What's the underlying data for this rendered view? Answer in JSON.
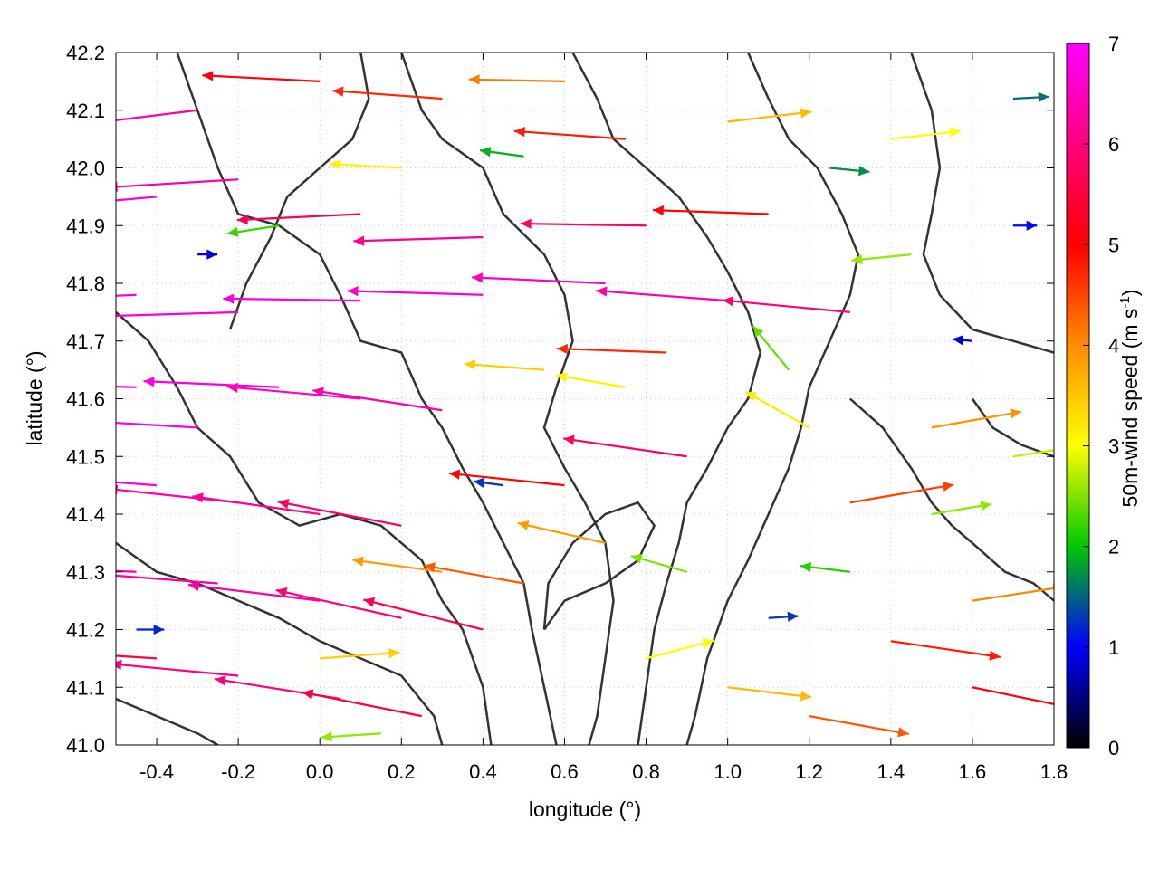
{
  "chart_data": {
    "type": "quiver",
    "xlabel": "longitude (°)",
    "ylabel": "latitude (°)",
    "colorbar_label": "50m-wind speed (m s",
    "colorbar_label_exp": "-1",
    "colorbar_label_close": ")",
    "xlim": [
      -0.5,
      1.8
    ],
    "ylim": [
      41.0,
      42.2
    ],
    "xticks": [
      -0.4,
      -0.2,
      0.0,
      0.2,
      0.4,
      0.6,
      0.8,
      1.0,
      1.2,
      1.4,
      1.6,
      1.8
    ],
    "xtick_labels": [
      "-0.4",
      "-0.2",
      "0.0",
      "0.2",
      "0.4",
      "0.6",
      "0.8",
      "1.0",
      "1.2",
      "1.4",
      "1.6",
      "1.8"
    ],
    "yticks": [
      41.0,
      41.1,
      41.2,
      41.3,
      41.4,
      41.5,
      41.6,
      41.7,
      41.8,
      41.9,
      42.0,
      42.1,
      42.2
    ],
    "ytick_labels": [
      "41.0",
      "41.1",
      "41.2",
      "41.3",
      "41.4",
      "41.5",
      "41.6",
      "41.7",
      "41.8",
      "41.9",
      "42.0",
      "42.1",
      "42.2"
    ],
    "colorbar_range": [
      0,
      7
    ],
    "colorbar_ticks": [
      "0",
      "1",
      "2",
      "3",
      "4",
      "5",
      "6",
      "7"
    ],
    "colormap": [
      "#000000",
      "#0000ff",
      "#00c800",
      "#ffff00",
      "#ff8c00",
      "#ff0000",
      "#ff00ff"
    ],
    "contour_color": "#333333",
    "grid": true,
    "vectors": [
      {
        "lon": -0.45,
        "lat": 41.62,
        "u": -7.0,
        "v": 0.2,
        "speed": 7.0
      },
      {
        "lon": -0.3,
        "lat": 41.55,
        "u": -6.9,
        "v": 0.4,
        "speed": 6.9
      },
      {
        "lon": -0.1,
        "lat": 41.62,
        "u": -6.8,
        "v": 0.3,
        "speed": 6.8
      },
      {
        "lon": 0.1,
        "lat": 41.6,
        "u": -6.7,
        "v": 0.6,
        "speed": 6.7
      },
      {
        "lon": 0.3,
        "lat": 41.58,
        "u": -6.5,
        "v": 1.0,
        "speed": 6.6
      },
      {
        "lon": -0.4,
        "lat": 41.45,
        "u": -6.8,
        "v": 0.5,
        "speed": 6.8
      },
      {
        "lon": -0.2,
        "lat": 41.42,
        "u": -6.6,
        "v": 0.7,
        "speed": 6.6
      },
      {
        "lon": 0.0,
        "lat": 41.4,
        "u": -6.4,
        "v": 0.9,
        "speed": 6.5
      },
      {
        "lon": 0.2,
        "lat": 41.38,
        "u": -6.2,
        "v": 1.2,
        "speed": 6.3
      },
      {
        "lon": -0.45,
        "lat": 41.3,
        "u": -6.7,
        "v": 0.3,
        "speed": 6.7
      },
      {
        "lon": -0.25,
        "lat": 41.28,
        "u": -6.5,
        "v": 0.5,
        "speed": 6.5
      },
      {
        "lon": 0.0,
        "lat": 41.25,
        "u": -6.6,
        "v": 0.8,
        "speed": 6.6
      },
      {
        "lon": 0.2,
        "lat": 41.22,
        "u": -6.3,
        "v": 1.4,
        "speed": 6.4
      },
      {
        "lon": 0.4,
        "lat": 41.2,
        "u": -6.0,
        "v": 1.5,
        "speed": 6.2
      },
      {
        "lon": -0.4,
        "lat": 41.15,
        "u": -6.2,
        "v": 0.4,
        "speed": 6.2
      },
      {
        "lon": -0.2,
        "lat": 41.12,
        "u": -6.4,
        "v": 0.6,
        "speed": 6.4
      },
      {
        "lon": 0.05,
        "lat": 41.08,
        "u": -6.3,
        "v": 1.0,
        "speed": 6.4
      },
      {
        "lon": 0.25,
        "lat": 41.05,
        "u": -6.0,
        "v": 1.2,
        "speed": 6.1
      },
      {
        "lon": -0.45,
        "lat": 41.78,
        "u": -6.9,
        "v": -0.3,
        "speed": 6.9
      },
      {
        "lon": -0.2,
        "lat": 41.75,
        "u": -6.8,
        "v": -0.2,
        "speed": 6.8
      },
      {
        "lon": 0.1,
        "lat": 41.77,
        "u": -6.9,
        "v": 0.1,
        "speed": 6.9
      },
      {
        "lon": 0.4,
        "lat": 41.78,
        "u": -6.8,
        "v": 0.2,
        "speed": 6.8
      },
      {
        "lon": 0.7,
        "lat": 41.8,
        "u": -6.7,
        "v": 0.3,
        "speed": 6.7
      },
      {
        "lon": 1.0,
        "lat": 41.77,
        "u": -6.6,
        "v": 0.5,
        "speed": 6.6
      },
      {
        "lon": 1.3,
        "lat": 41.75,
        "u": -6.4,
        "v": 0.6,
        "speed": 6.4
      },
      {
        "lon": -0.4,
        "lat": 41.95,
        "u": -6.8,
        "v": -0.6,
        "speed": 6.8
      },
      {
        "lon": -0.2,
        "lat": 41.98,
        "u": -6.6,
        "v": -0.4,
        "speed": 6.6
      },
      {
        "lon": 0.1,
        "lat": 41.92,
        "u": -6.2,
        "v": -0.3,
        "speed": 6.2
      },
      {
        "lon": 0.4,
        "lat": 41.88,
        "u": -6.5,
        "v": -0.2,
        "speed": 6.5
      },
      {
        "lon": 0.8,
        "lat": 41.9,
        "u": -6.3,
        "v": 0.1,
        "speed": 6.3
      },
      {
        "lon": 1.1,
        "lat": 41.92,
        "u": -5.8,
        "v": 0.2,
        "speed": 5.8
      },
      {
        "lon": -0.3,
        "lat": 42.1,
        "u": -6.5,
        "v": -0.8,
        "speed": 6.6
      },
      {
        "lon": 0.0,
        "lat": 42.15,
        "u": -5.9,
        "v": 0.3,
        "speed": 5.9
      },
      {
        "lon": 0.3,
        "lat": 42.12,
        "u": -5.5,
        "v": 0.4,
        "speed": 5.5
      },
      {
        "lon": 0.6,
        "lat": 42.15,
        "u": -4.8,
        "v": 0.1,
        "speed": 4.8
      },
      {
        "lon": 1.0,
        "lat": 42.08,
        "u": 4.2,
        "v": 0.5,
        "speed": 4.2
      },
      {
        "lon": 1.4,
        "lat": 42.05,
        "u": 3.5,
        "v": 0.4,
        "speed": 3.5
      },
      {
        "lon": 1.7,
        "lat": 42.12,
        "u": 1.8,
        "v": 0.1,
        "speed": 1.8
      },
      {
        "lon": 1.7,
        "lat": 41.9,
        "u": 1.2,
        "v": 0.0,
        "speed": 1.2
      },
      {
        "lon": 1.6,
        "lat": 41.7,
        "u": -1.0,
        "v": 0.1,
        "speed": 1.0
      },
      {
        "lon": 1.5,
        "lat": 41.55,
        "u": 4.5,
        "v": 0.8,
        "speed": 4.6
      },
      {
        "lon": 1.5,
        "lat": 41.4,
        "u": 3.0,
        "v": 0.5,
        "speed": 3.0
      },
      {
        "lon": 1.3,
        "lat": 41.42,
        "u": 5.2,
        "v": 0.9,
        "speed": 5.3
      },
      {
        "lon": 1.6,
        "lat": 41.25,
        "u": 4.6,
        "v": 0.7,
        "speed": 4.7
      },
      {
        "lon": 1.4,
        "lat": 41.18,
        "u": 5.5,
        "v": -0.8,
        "speed": 5.6
      },
      {
        "lon": 1.6,
        "lat": 41.1,
        "u": 5.8,
        "v": -1.2,
        "speed": 5.9
      },
      {
        "lon": 1.2,
        "lat": 41.05,
        "u": 5.0,
        "v": -0.9,
        "speed": 5.1
      },
      {
        "lon": 1.0,
        "lat": 41.1,
        "u": 4.2,
        "v": -0.5,
        "speed": 4.2
      },
      {
        "lon": 0.8,
        "lat": 41.15,
        "u": 3.4,
        "v": 0.9,
        "speed": 3.5
      },
      {
        "lon": 0.9,
        "lat": 41.3,
        "u": -2.8,
        "v": 0.8,
        "speed": 2.9
      },
      {
        "lon": 0.7,
        "lat": 41.35,
        "u": -4.4,
        "v": 1.0,
        "speed": 4.5
      },
      {
        "lon": 0.6,
        "lat": 41.45,
        "u": -5.8,
        "v": 0.6,
        "speed": 5.8
      },
      {
        "lon": 0.9,
        "lat": 41.5,
        "u": -6.2,
        "v": 0.9,
        "speed": 6.3
      },
      {
        "lon": 1.2,
        "lat": 41.55,
        "u": -3.2,
        "v": 1.8,
        "speed": 3.7
      },
      {
        "lon": 0.75,
        "lat": 41.62,
        "u": -3.5,
        "v": 0.6,
        "speed": 3.6
      },
      {
        "lon": 0.55,
        "lat": 41.65,
        "u": -4.0,
        "v": 0.3,
        "speed": 4.0
      },
      {
        "lon": 0.85,
        "lat": 41.68,
        "u": -5.5,
        "v": 0.2,
        "speed": 5.5
      },
      {
        "lon": 1.15,
        "lat": 41.65,
        "u": -1.8,
        "v": 2.2,
        "speed": 2.8
      },
      {
        "lon": 0.45,
        "lat": 41.45,
        "u": -1.5,
        "v": 0.2,
        "speed": 1.5
      },
      {
        "lon": 1.7,
        "lat": 41.5,
        "u": 3.2,
        "v": 0.5,
        "speed": 3.2
      },
      {
        "lon": 1.3,
        "lat": 41.3,
        "u": -2.5,
        "v": 0.3,
        "speed": 2.5
      },
      {
        "lon": 1.1,
        "lat": 41.22,
        "u": 1.5,
        "v": 0.1,
        "speed": 1.5
      },
      {
        "lon": 0.3,
        "lat": 41.3,
        "u": -4.5,
        "v": 0.6,
        "speed": 4.5
      },
      {
        "lon": 0.5,
        "lat": 41.28,
        "u": -5.0,
        "v": 0.9,
        "speed": 5.1
      },
      {
        "lon": 1.45,
        "lat": 41.85,
        "u": -3.0,
        "v": -0.3,
        "speed": 3.0
      },
      {
        "lon": 1.25,
        "lat": 42.0,
        "u": 2.0,
        "v": -0.2,
        "speed": 2.0
      },
      {
        "lon": -0.3,
        "lat": 41.85,
        "u": 1.0,
        "v": 0.0,
        "speed": 1.0
      },
      {
        "lon": -0.1,
        "lat": 41.9,
        "u": -2.6,
        "v": -0.4,
        "speed": 2.6
      },
      {
        "lon": 0.2,
        "lat": 42.0,
        "u": -3.6,
        "v": 0.2,
        "speed": 3.6
      },
      {
        "lon": 0.5,
        "lat": 42.02,
        "u": -2.2,
        "v": 0.3,
        "speed": 2.2
      },
      {
        "lon": 0.75,
        "lat": 42.05,
        "u": -5.6,
        "v": 0.4,
        "speed": 5.6
      },
      {
        "lon": -0.45,
        "lat": 41.2,
        "u": 1.4,
        "v": 0.0,
        "speed": 1.4
      },
      {
        "lon": 0.0,
        "lat": 41.15,
        "u": 4.0,
        "v": 0.3,
        "speed": 4.0
      },
      {
        "lon": 0.15,
        "lat": 41.02,
        "u": -3.0,
        "v": -0.2,
        "speed": 3.0
      }
    ],
    "contours": [
      [
        [
          -0.5,
          41.75
        ],
        [
          -0.42,
          41.7
        ],
        [
          -0.35,
          41.62
        ],
        [
          -0.3,
          41.55
        ],
        [
          -0.22,
          41.5
        ],
        [
          -0.15,
          41.42
        ],
        [
          -0.05,
          41.38
        ],
        [
          0.05,
          41.4
        ],
        [
          0.15,
          41.38
        ],
        [
          0.25,
          41.32
        ],
        [
          0.3,
          41.25
        ],
        [
          0.35,
          41.2
        ],
        [
          0.4,
          41.1
        ],
        [
          0.42,
          41.0
        ]
      ],
      [
        [
          -0.35,
          42.2
        ],
        [
          -0.3,
          42.1
        ],
        [
          -0.25,
          42.0
        ],
        [
          -0.2,
          41.92
        ],
        [
          -0.1,
          41.9
        ],
        [
          0.0,
          41.85
        ],
        [
          0.05,
          41.78
        ],
        [
          0.1,
          41.7
        ],
        [
          0.2,
          41.68
        ],
        [
          0.25,
          41.6
        ],
        [
          0.3,
          41.55
        ],
        [
          0.35,
          41.48
        ],
        [
          0.4,
          41.42
        ],
        [
          0.45,
          41.35
        ],
        [
          0.5,
          41.28
        ],
        [
          0.52,
          41.2
        ],
        [
          0.55,
          41.1
        ],
        [
          0.58,
          41.0
        ]
      ],
      [
        [
          0.2,
          42.2
        ],
        [
          0.25,
          42.1
        ],
        [
          0.3,
          42.05
        ],
        [
          0.4,
          42.0
        ],
        [
          0.45,
          41.92
        ],
        [
          0.55,
          41.85
        ],
        [
          0.6,
          41.78
        ],
        [
          0.62,
          41.7
        ],
        [
          0.58,
          41.62
        ],
        [
          0.55,
          41.55
        ],
        [
          0.6,
          41.48
        ],
        [
          0.65,
          41.42
        ],
        [
          0.7,
          41.35
        ],
        [
          0.72,
          41.25
        ],
        [
          0.7,
          41.15
        ],
        [
          0.68,
          41.05
        ],
        [
          0.66,
          41.0
        ]
      ],
      [
        [
          0.62,
          42.2
        ],
        [
          0.68,
          42.12
        ],
        [
          0.72,
          42.05
        ],
        [
          0.8,
          42.0
        ],
        [
          0.88,
          41.95
        ],
        [
          0.95,
          41.88
        ],
        [
          1.0,
          41.82
        ],
        [
          1.05,
          41.75
        ],
        [
          1.08,
          41.68
        ],
        [
          1.05,
          41.6
        ],
        [
          1.0,
          41.55
        ],
        [
          0.95,
          41.48
        ],
        [
          0.9,
          41.42
        ],
        [
          0.88,
          41.35
        ],
        [
          0.85,
          41.28
        ],
        [
          0.82,
          41.2
        ],
        [
          0.8,
          41.1
        ],
        [
          0.78,
          41.0
        ]
      ],
      [
        [
          1.05,
          42.2
        ],
        [
          1.1,
          42.12
        ],
        [
          1.15,
          42.05
        ],
        [
          1.22,
          42.0
        ],
        [
          1.28,
          41.92
        ],
        [
          1.32,
          41.85
        ],
        [
          1.3,
          41.78
        ],
        [
          1.25,
          41.7
        ],
        [
          1.2,
          41.62
        ],
        [
          1.18,
          41.55
        ],
        [
          1.15,
          41.48
        ],
        [
          1.1,
          41.4
        ],
        [
          1.05,
          41.32
        ],
        [
          1.0,
          41.25
        ],
        [
          0.95,
          41.15
        ],
        [
          0.92,
          41.05
        ],
        [
          0.9,
          41.0
        ]
      ],
      [
        [
          1.3,
          41.6
        ],
        [
          1.38,
          41.55
        ],
        [
          1.45,
          41.48
        ],
        [
          1.5,
          41.42
        ],
        [
          1.55,
          41.38
        ],
        [
          1.6,
          41.35
        ],
        [
          1.68,
          41.3
        ],
        [
          1.75,
          41.28
        ],
        [
          1.8,
          41.25
        ]
      ],
      [
        [
          -0.5,
          41.35
        ],
        [
          -0.4,
          41.3
        ],
        [
          -0.3,
          41.28
        ],
        [
          -0.2,
          41.25
        ],
        [
          -0.1,
          41.22
        ],
        [
          0.0,
          41.18
        ],
        [
          0.1,
          41.15
        ],
        [
          0.2,
          41.12
        ],
        [
          0.28,
          41.05
        ],
        [
          0.3,
          41.0
        ]
      ],
      [
        [
          1.45,
          42.2
        ],
        [
          1.5,
          42.1
        ],
        [
          1.52,
          42.0
        ],
        [
          1.5,
          41.92
        ],
        [
          1.48,
          41.85
        ],
        [
          1.52,
          41.78
        ],
        [
          1.6,
          41.72
        ],
        [
          1.7,
          41.7
        ],
        [
          1.8,
          41.68
        ]
      ],
      [
        [
          0.55,
          41.2
        ],
        [
          0.6,
          41.25
        ],
        [
          0.7,
          41.28
        ],
        [
          0.78,
          41.32
        ],
        [
          0.82,
          41.38
        ],
        [
          0.78,
          41.42
        ],
        [
          0.7,
          41.4
        ],
        [
          0.62,
          41.35
        ],
        [
          0.56,
          41.28
        ],
        [
          0.55,
          41.2
        ]
      ],
      [
        [
          1.6,
          41.6
        ],
        [
          1.65,
          41.55
        ],
        [
          1.72,
          41.52
        ],
        [
          1.8,
          41.5
        ]
      ],
      [
        [
          -0.5,
          41.08
        ],
        [
          -0.4,
          41.05
        ],
        [
          -0.3,
          41.02
        ],
        [
          -0.25,
          41.0
        ]
      ],
      [
        [
          0.1,
          42.2
        ],
        [
          0.12,
          42.12
        ],
        [
          0.08,
          42.05
        ],
        [
          0.0,
          42.0
        ],
        [
          -0.08,
          41.95
        ],
        [
          -0.12,
          41.88
        ],
        [
          -0.18,
          41.8
        ],
        [
          -0.22,
          41.72
        ]
      ]
    ]
  }
}
